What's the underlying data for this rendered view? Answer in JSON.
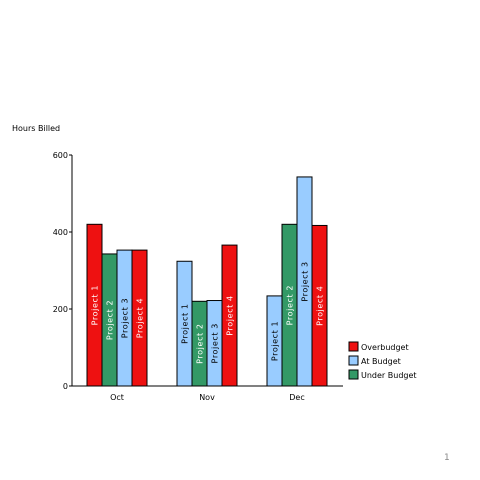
{
  "chart_data": {
    "type": "bar",
    "title": "",
    "ylabel": "Hours Billed",
    "xlabel": "",
    "ylim": [
      0,
      600
    ],
    "yticks": [
      0,
      200,
      400,
      600
    ],
    "grid": false,
    "legend_position": "bottom-right",
    "categories": [
      "Oct",
      "Nov",
      "Dec"
    ],
    "status_colors": {
      "Overbudget": "#ee1111",
      "At Budget": "#99ccff",
      "Under Budget": "#339966"
    },
    "legend": [
      "Overbudget",
      "At Budget",
      "Under Budget"
    ],
    "groups": [
      {
        "category": "Oct",
        "bars": [
          {
            "label": "Project 1",
            "value": 420,
            "status": "Overbudget"
          },
          {
            "label": "Project 2",
            "value": 343,
            "status": "Under Budget"
          },
          {
            "label": "Project 3",
            "value": 353,
            "status": "At Budget"
          },
          {
            "label": "Project 4",
            "value": 353,
            "status": "Overbudget"
          }
        ]
      },
      {
        "category": "Nov",
        "bars": [
          {
            "label": "Project 1",
            "value": 324,
            "status": "At Budget"
          },
          {
            "label": "Project 2",
            "value": 220,
            "status": "Under Budget"
          },
          {
            "label": "Project 3",
            "value": 222,
            "status": "At Budget"
          },
          {
            "label": "Project 4",
            "value": 366,
            "status": "Overbudget"
          }
        ]
      },
      {
        "category": "Dec",
        "bars": [
          {
            "label": "Project 1",
            "value": 234,
            "status": "At Budget"
          },
          {
            "label": "Project 2",
            "value": 420,
            "status": "Under Budget"
          },
          {
            "label": "Project 3",
            "value": 543,
            "status": "At Budget"
          },
          {
            "label": "Project 4",
            "value": 417,
            "status": "Overbudget"
          }
        ]
      }
    ]
  },
  "page_number": "1"
}
